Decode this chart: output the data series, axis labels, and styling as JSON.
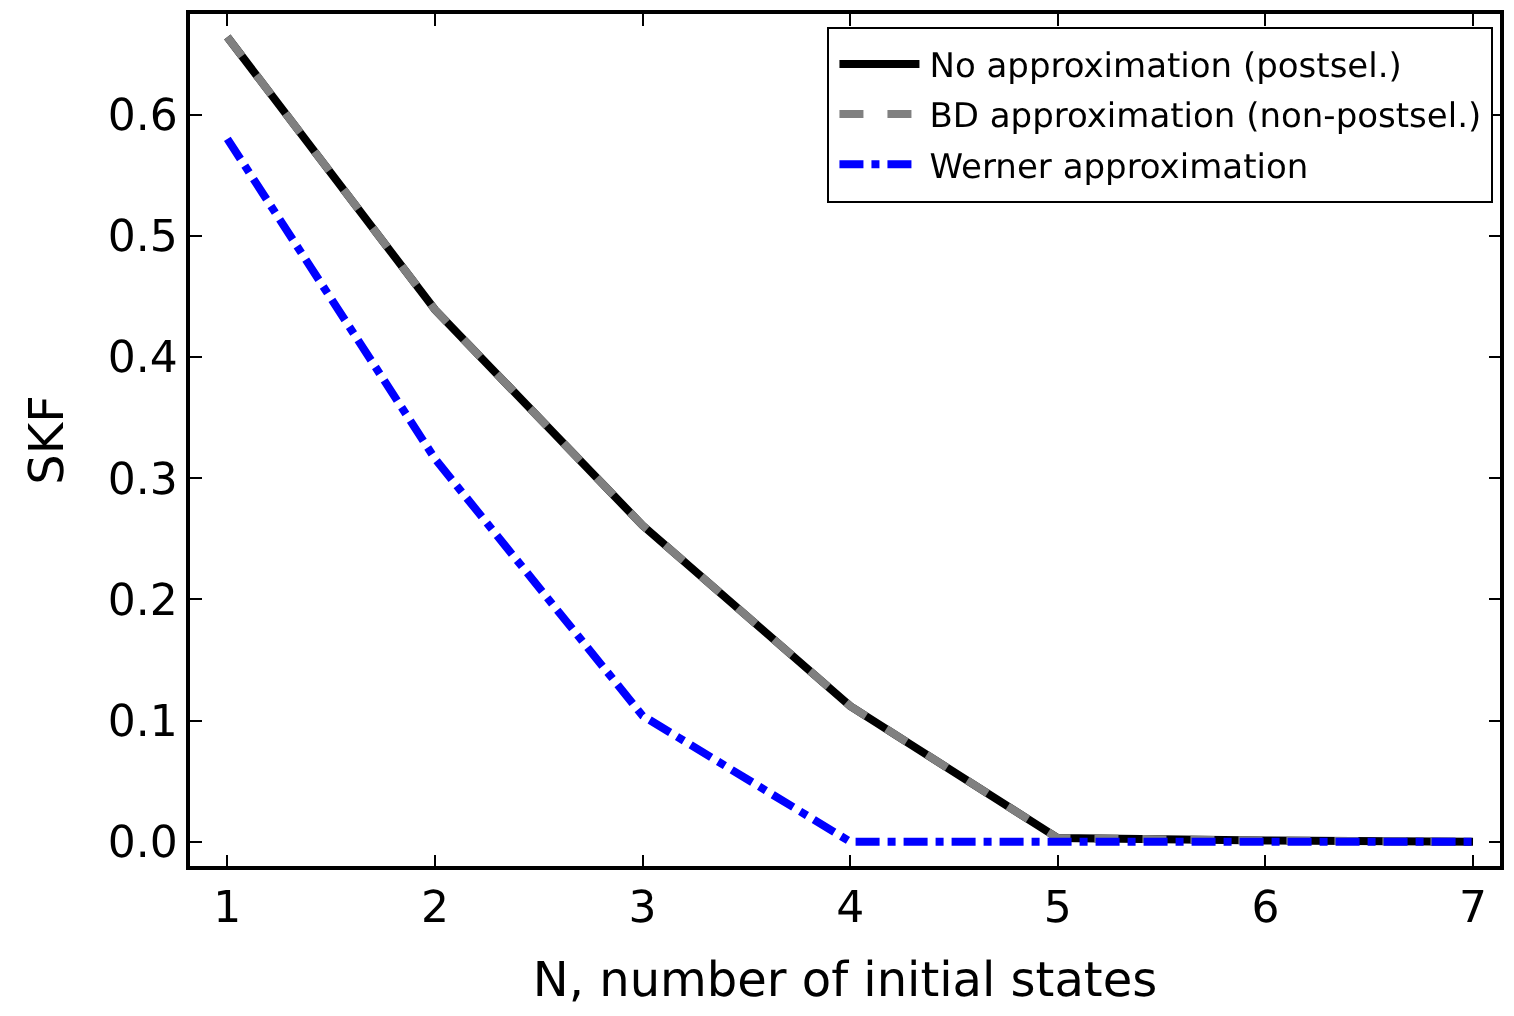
{
  "chart_data": {
    "type": "line",
    "xlabel": "N, number of initial states",
    "ylabel": "SKF",
    "x": [
      1,
      2,
      3,
      4,
      5,
      6,
      7
    ],
    "series": [
      {
        "name": "No approximation (postsel.)",
        "color": "#000000",
        "line_style": "solid",
        "values": [
          0.664,
          0.439,
          0.261,
          0.112,
          0.003,
          0.001,
          0.0
        ]
      },
      {
        "name": "BD approximation (non-postsel.)",
        "color": "#808080",
        "line_style": "dashed",
        "values": [
          0.664,
          0.439,
          0.261,
          0.112,
          0.003,
          0.001,
          0.0
        ]
      },
      {
        "name": "Werner approximation",
        "color": "#0000ff",
        "line_style": "dashdot",
        "values": [
          0.58,
          0.316,
          0.104,
          0.0,
          0.0,
          0.0,
          0.0
        ]
      }
    ],
    "xlim": [
      0.82,
      7.13
    ],
    "ylim": [
      -0.02,
      0.683
    ],
    "xticks": [
      1,
      2,
      3,
      4,
      5,
      6,
      7
    ],
    "yticks": [
      {
        "value": 0,
        "label": "0.0"
      },
      0.1,
      0.2,
      0.3,
      0.4,
      0.5,
      0.6
    ],
    "legend": "top right",
    "marker": "none"
  }
}
